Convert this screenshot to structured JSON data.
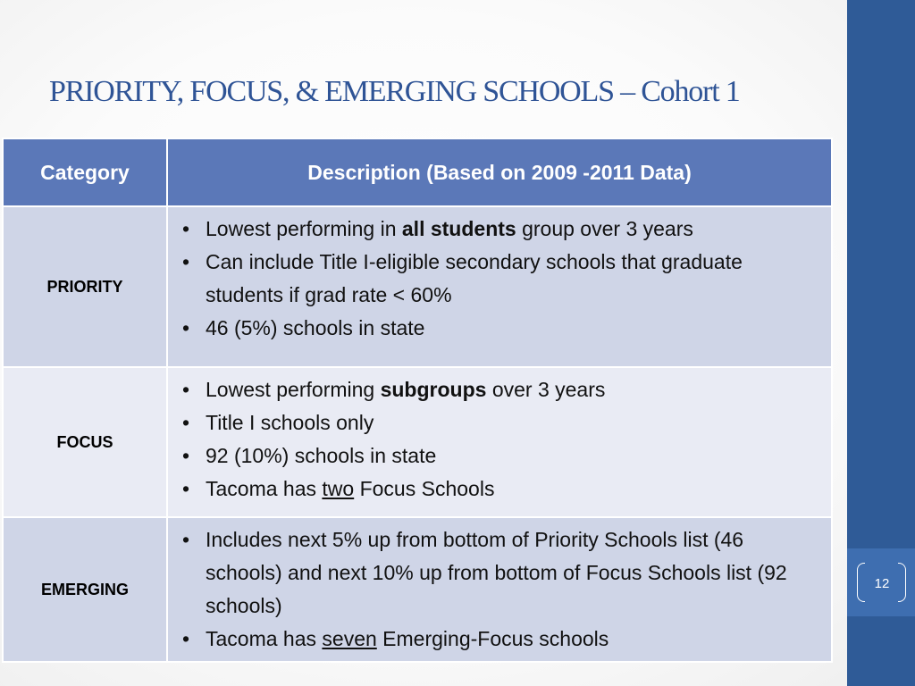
{
  "slide": {
    "title": "PRIORITY, FOCUS, & EMERGING SCHOOLS – Cohort 1",
    "page_number": "12"
  },
  "table": {
    "headers": [
      "Category",
      "Description  (Based on 2009 -2011 Data)"
    ],
    "rows": [
      {
        "category": "PRIORITY",
        "bullets": [
          {
            "pre": "Lowest performing in ",
            "emph": "all students",
            "post": " group over 3 years"
          },
          {
            "pre": "Can include Title I-eligible secondary schools that graduate students if grad rate < 60%"
          },
          {
            "pre": "46 (5%) schools in state"
          }
        ]
      },
      {
        "category": "FOCUS",
        "bullets": [
          {
            "pre": "Lowest performing ",
            "emph": "subgroups",
            "post": " over 3 years"
          },
          {
            "pre": "Title I schools only"
          },
          {
            "pre": "92 (10%) schools in state"
          },
          {
            "pre": "Tacoma has ",
            "under": "two",
            "post": " Focus Schools"
          }
        ]
      },
      {
        "category": "EMERGING",
        "bullets": [
          {
            "pre": "Includes next 5% up from bottom of Priority Schools list (46 schools) and next 10% up from bottom of Focus Schools list (92 schools)"
          },
          {
            "pre": "Tacoma has ",
            "under": "seven",
            "post": " Emerging-Focus schools"
          }
        ]
      }
    ]
  },
  "bullet_glyph": "•",
  "colors": {
    "title": "#2f5496",
    "header_bg": "#5b78b8",
    "row_dark": "#cfd5e7",
    "row_light": "#e9ebf4",
    "side_bar": "#2f5b97",
    "page_number_box": "#3e6eb0"
  }
}
